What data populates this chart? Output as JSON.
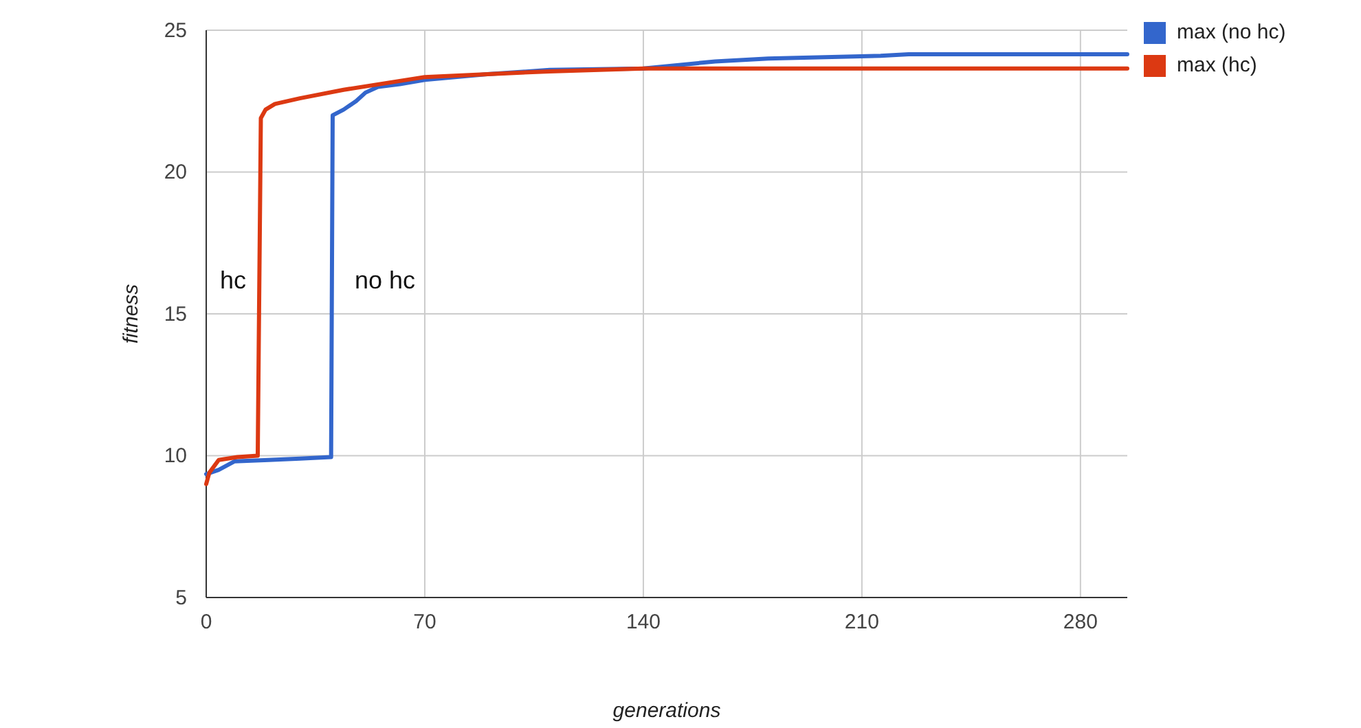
{
  "chart_data": {
    "type": "line",
    "xlabel": "generations",
    "ylabel": "fitness",
    "xlim": [
      0,
      295
    ],
    "ylim": [
      5,
      25
    ],
    "xticks": [
      0,
      70,
      140,
      210,
      280
    ],
    "yticks": [
      5,
      10,
      15,
      20,
      25
    ],
    "grid": true,
    "legend": "top right",
    "marker": "none",
    "line_style": "solid",
    "series": [
      {
        "name": "max (no hc)",
        "color": "#3366cc",
        "x": [
          0,
          4,
          9,
          20,
          30,
          40,
          40.5,
          44,
          48,
          51,
          55,
          62,
          70,
          90,
          110,
          140,
          163,
          180,
          216,
          225,
          295
        ],
        "values": [
          9.35,
          9.5,
          9.8,
          9.85,
          9.9,
          9.95,
          22.0,
          22.2,
          22.5,
          22.8,
          23.0,
          23.1,
          23.25,
          23.45,
          23.6,
          23.65,
          23.9,
          24.0,
          24.1,
          24.15,
          24.15
        ]
      },
      {
        "name": "max (hc)",
        "color": "#dc3912",
        "x": [
          0,
          1,
          4,
          10,
          16.5,
          17.5,
          19,
          22,
          30,
          44,
          70,
          110,
          140,
          295
        ],
        "values": [
          9.0,
          9.4,
          9.85,
          9.95,
          10.0,
          21.9,
          22.2,
          22.4,
          22.6,
          22.9,
          23.35,
          23.55,
          23.65,
          23.65
        ]
      }
    ],
    "annotations": [
      "hc",
      "no hc"
    ]
  }
}
